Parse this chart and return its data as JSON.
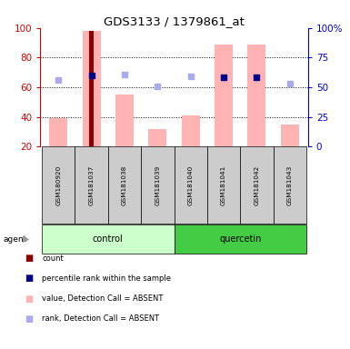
{
  "title": "GDS3133 / 1379861_at",
  "samples": [
    "GSM180920",
    "GSM181037",
    "GSM181038",
    "GSM181039",
    "GSM181040",
    "GSM181041",
    "GSM181042",
    "GSM181043"
  ],
  "bar_values": [
    39,
    98,
    55,
    32,
    41,
    89,
    89,
    35
  ],
  "bar_color_value": "#ffb3b3",
  "bar_color_count": "#8b0000",
  "count_bar_sample_idx": 1,
  "count_bar_value": 98,
  "percentile_rank_values": [
    null,
    68,
    null,
    null,
    null,
    67,
    67,
    null
  ],
  "percentile_rank_color": "#00008b",
  "rank_absent_values": [
    56,
    null,
    61,
    51,
    59,
    null,
    null,
    53
  ],
  "rank_absent_color": "#aaaaee",
  "ylim_left": [
    20,
    100
  ],
  "ylim_right": [
    0,
    100
  ],
  "yticks_left": [
    20,
    40,
    60,
    80,
    100
  ],
  "left_axis_color": "#cc0000",
  "right_axis_color": "#0000cc",
  "control_color": "#ccffcc",
  "quercetin_color": "#44cc44",
  "legend_items": [
    {
      "color": "#8b0000",
      "label": "count"
    },
    {
      "color": "#00008b",
      "label": "percentile rank within the sample"
    },
    {
      "color": "#ffb3b3",
      "label": "value, Detection Call = ABSENT"
    },
    {
      "color": "#aaaaee",
      "label": "rank, Detection Call = ABSENT"
    }
  ]
}
